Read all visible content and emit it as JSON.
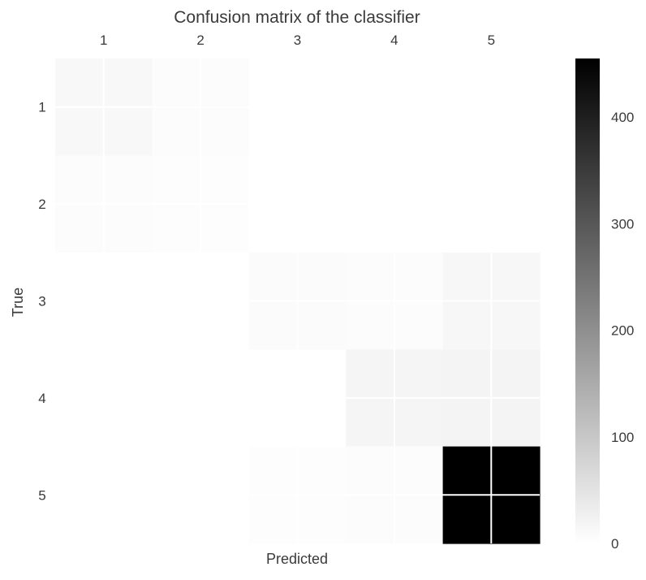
{
  "chart_data": {
    "type": "heatmap",
    "title": "Confusion matrix of the classifier",
    "xlabel": "Predicted",
    "ylabel": "True",
    "x_categories": [
      "1",
      "2",
      "3",
      "4",
      "5"
    ],
    "y_categories": [
      "1",
      "2",
      "3",
      "4",
      "5"
    ],
    "x_axis_position": "top",
    "matrix": [
      [
        12,
        6,
        0,
        0,
        0
      ],
      [
        5,
        4,
        0,
        0,
        0
      ],
      [
        0,
        0,
        8,
        6,
        14
      ],
      [
        0,
        0,
        0,
        18,
        20
      ],
      [
        0,
        0,
        3,
        6,
        455
      ]
    ],
    "colormap": "greys",
    "color_range": [
      0,
      455
    ],
    "colorbar": {
      "ticks": [
        0,
        100,
        200,
        300,
        400
      ],
      "labels": [
        "0",
        "100",
        "200",
        "300",
        "400"
      ]
    },
    "grid": true,
    "colors": {
      "low": "#ffffff",
      "high": "#000000",
      "grid": "#ffffff",
      "text": "#3a3a3a"
    }
  }
}
